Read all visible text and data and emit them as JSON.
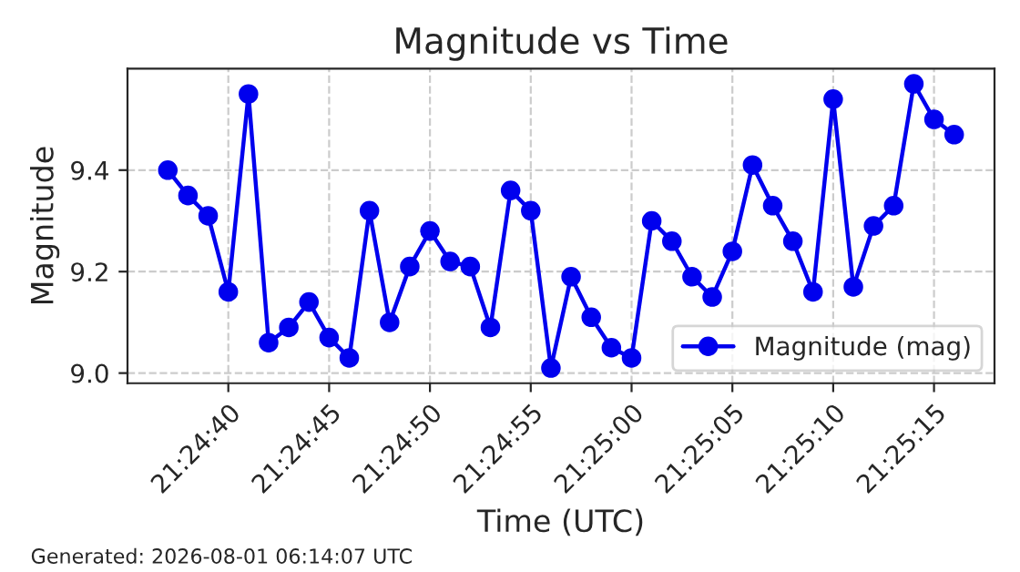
{
  "chart_data": {
    "type": "line",
    "title": "Magnitude vs Time",
    "xlabel": "Time (UTC)",
    "ylabel": "Magnitude",
    "annotations": [
      "Generated: 2026-08-01 06:14:07 UTC"
    ],
    "x": [
      "2026-08-01T21:24:37",
      "2026-08-01T21:24:38",
      "2026-08-01T21:24:39",
      "2026-08-01T21:24:40",
      "2026-08-01T21:24:41",
      "2026-08-01T21:24:42",
      "2026-08-01T21:24:43",
      "2026-08-01T21:24:44",
      "2026-08-01T21:24:45",
      "2026-08-01T21:24:46",
      "2026-08-01T21:24:47",
      "2026-08-01T21:24:48",
      "2026-08-01T21:24:49",
      "2026-08-01T21:24:50",
      "2026-08-01T21:24:51",
      "2026-08-01T21:24:52",
      "2026-08-01T21:24:53",
      "2026-08-01T21:24:54",
      "2026-08-01T21:24:55",
      "2026-08-01T21:24:56",
      "2026-08-01T21:24:57",
      "2026-08-01T21:24:58",
      "2026-08-01T21:24:59",
      "2026-08-01T21:25:00",
      "2026-08-01T21:25:01",
      "2026-08-01T21:25:02",
      "2026-08-01T21:25:03",
      "2026-08-01T21:25:04",
      "2026-08-01T21:25:05",
      "2026-08-01T21:25:06",
      "2026-08-01T21:25:07",
      "2026-08-01T21:25:08",
      "2026-08-01T21:25:09",
      "2026-08-01T21:25:10",
      "2026-08-01T21:25:11",
      "2026-08-01T21:25:12",
      "2026-08-01T21:25:13",
      "2026-08-01T21:25:14",
      "2026-08-01T21:25:15",
      "2026-08-01T21:25:16"
    ],
    "series": [
      {
        "name": "Magnitude (mag)",
        "color": "#0000ee",
        "values": [
          9.4,
          9.35,
          9.31,
          9.16,
          9.55,
          9.06,
          9.09,
          9.14,
          9.07,
          9.03,
          9.32,
          9.1,
          9.21,
          9.28,
          9.22,
          9.21,
          9.09,
          9.36,
          9.32,
          9.01,
          9.19,
          9.11,
          9.05,
          9.03,
          9.3,
          9.26,
          9.19,
          9.15,
          9.24,
          9.41,
          9.33,
          9.26,
          9.16,
          9.54,
          9.17,
          9.29,
          9.33,
          9.57,
          9.5,
          9.47
        ]
      }
    ],
    "xlim": [
      "2026-08-01T21:24:35",
      "2026-08-01T21:25:18"
    ],
    "xticks": [
      {
        "value": "2026-08-01T21:24:40",
        "label": "21:24:40"
      },
      {
        "value": "2026-08-01T21:24:45",
        "label": "21:24:45"
      },
      {
        "value": "2026-08-01T21:24:50",
        "label": "21:24:50"
      },
      {
        "value": "2026-08-01T21:24:55",
        "label": "21:24:55"
      },
      {
        "value": "2026-08-01T21:25:00",
        "label": "21:25:00"
      },
      {
        "value": "2026-08-01T21:25:05",
        "label": "21:25:05"
      },
      {
        "value": "2026-08-01T21:25:10",
        "label": "21:25:10"
      },
      {
        "value": "2026-08-01T21:25:15",
        "label": "21:25:15"
      }
    ],
    "ylim": [
      8.98,
      9.6
    ],
    "yticks": [
      {
        "value": 9.0,
        "label": "9.0"
      },
      9.2,
      9.4
    ],
    "grid": true,
    "legend": "lower right",
    "marker": "circle",
    "line_style": "solid"
  }
}
